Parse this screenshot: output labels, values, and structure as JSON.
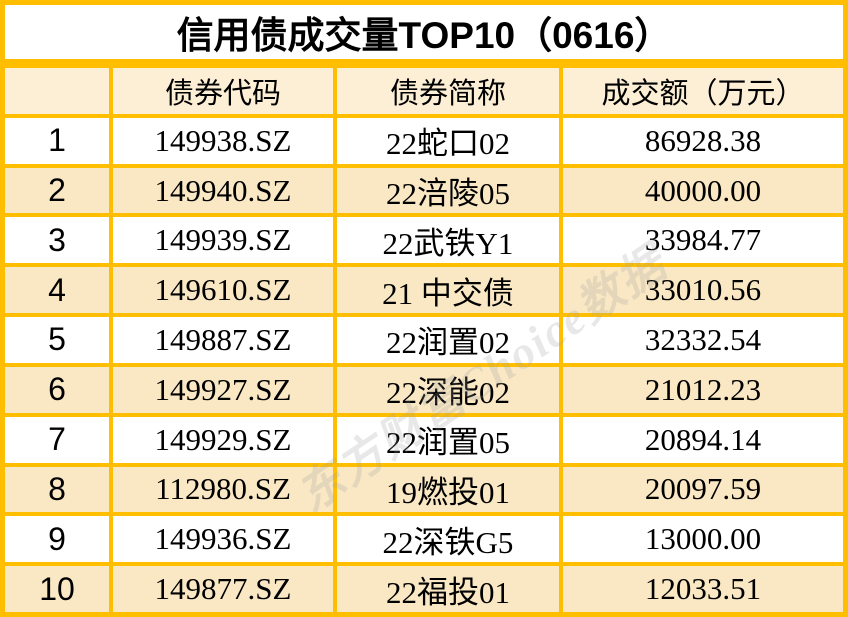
{
  "chart_data": {
    "type": "table",
    "title": "信用债成交量TOP10（0616）",
    "headers": [
      "",
      "债券代码",
      "债券简称",
      "成交额（万元）"
    ],
    "rows": [
      [
        "1",
        "149938.SZ",
        "22蛇口02",
        "86928.38"
      ],
      [
        "2",
        "149940.SZ",
        "22涪陵05",
        "40000.00"
      ],
      [
        "3",
        "149939.SZ",
        "22武铁Y1",
        "33984.77"
      ],
      [
        "4",
        "149610.SZ",
        "21 中交债",
        "33010.56"
      ],
      [
        "5",
        "149887.SZ",
        "22润置02",
        "32332.54"
      ],
      [
        "6",
        "149927.SZ",
        "22深能02",
        "21012.23"
      ],
      [
        "7",
        "149929.SZ",
        "22润置05",
        "20894.14"
      ],
      [
        "8",
        "112980.SZ",
        "19燃投01",
        "20097.59"
      ],
      [
        "9",
        "149936.SZ",
        "22深铁G5",
        "13000.00"
      ],
      [
        "10",
        "149877.SZ",
        "22福投01",
        "12033.51"
      ]
    ],
    "layout_hints": {
      "stripe_rows": "even ranks shaded cream",
      "grid": "on"
    }
  },
  "watermark": "东方财富Choice数据",
  "colors": {
    "grid": "#FFBF00",
    "header_bg": "#FCEFD5",
    "stripe_bg": "#FAE8C4",
    "row_bg": "#FFFFFF",
    "title_bg": "#FFFFFF",
    "text": "#000000",
    "watermark": "rgba(155,155,155,0.45)"
  }
}
